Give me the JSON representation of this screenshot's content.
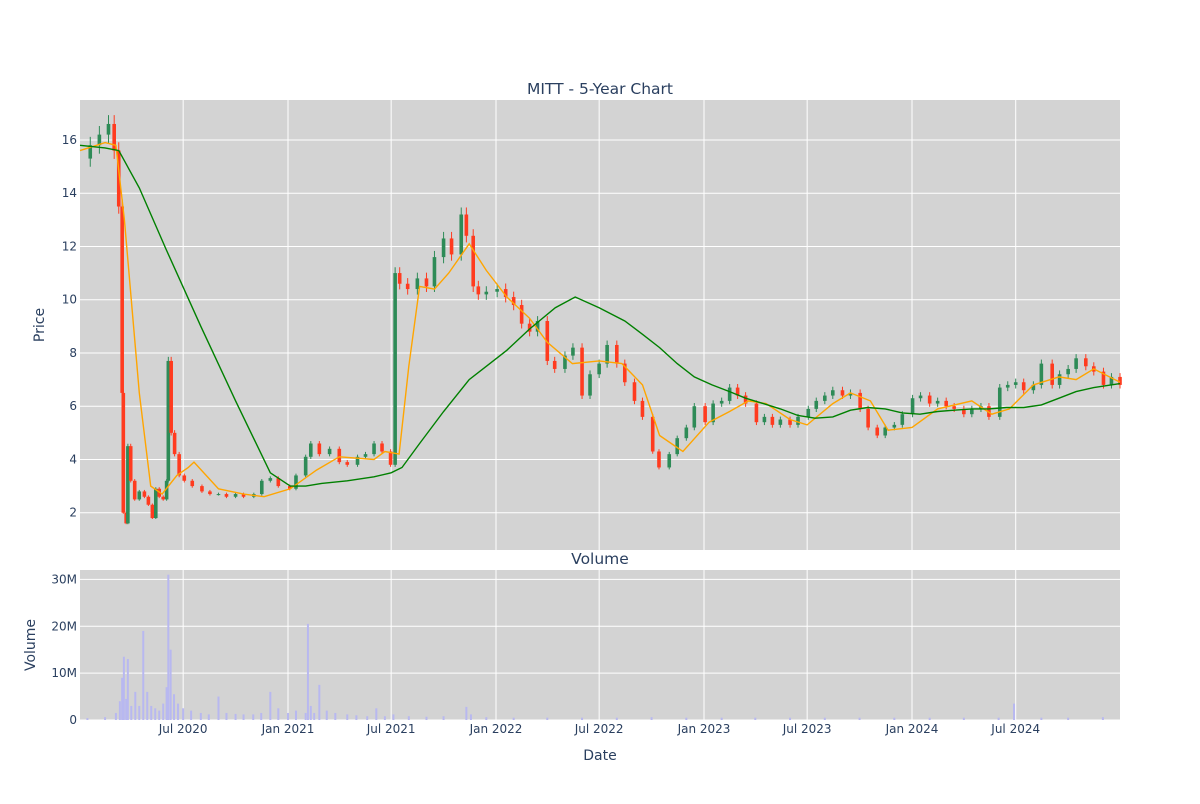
{
  "chart_data": [
    {
      "type": "candlestick",
      "title": "MITT - 5-Year Chart",
      "xlabel": "",
      "ylabel": "Price",
      "ylim": [
        0.6,
        17.5
      ],
      "xlim": [
        "2020-01-02",
        "2024-12-31"
      ],
      "y_ticks": [
        2,
        4,
        6,
        8,
        10,
        12,
        14,
        16
      ],
      "grid": true,
      "legend": "none",
      "colors": {
        "plot_background": "#d3d3d3",
        "increasing": "#2e8b57",
        "decreasing": "#ff3b1f",
        "ma_short": "#ffa500",
        "ma_long": "#008000"
      },
      "series": [
        {
          "kind": "close",
          "x": [
            "2020-01-02",
            "2020-01-20",
            "2020-02-05",
            "2020-02-21",
            "2020-03-02",
            "2020-03-10",
            "2020-03-16",
            "2020-03-18",
            "2020-03-23",
            "2020-03-26",
            "2020-03-31",
            "2020-04-07",
            "2020-04-15",
            "2020-04-24",
            "2020-05-01",
            "2020-05-08",
            "2020-05-14",
            "2020-05-20",
            "2020-05-27",
            "2020-06-02",
            "2020-06-05",
            "2020-06-10",
            "2020-06-16",
            "2020-06-24",
            "2020-07-03",
            "2020-07-17",
            "2020-08-03",
            "2020-08-17",
            "2020-09-01",
            "2020-09-15",
            "2020-10-01",
            "2020-10-15",
            "2020-11-02",
            "2020-11-16",
            "2020-12-01",
            "2020-12-15",
            "2021-01-04",
            "2021-01-15",
            "2021-02-01",
            "2021-02-10",
            "2021-02-25",
            "2021-03-15",
            "2021-04-01",
            "2021-04-15",
            "2021-05-03",
            "2021-05-17",
            "2021-06-01",
            "2021-06-15",
            "2021-06-30",
            "2021-07-08",
            "2021-07-16",
            "2021-07-30",
            "2021-08-16",
            "2021-09-01",
            "2021-09-15",
            "2021-10-01",
            "2021-10-15",
            "2021-11-01",
            "2021-11-10",
            "2021-11-22",
            "2021-12-01",
            "2021-12-15",
            "2022-01-03",
            "2022-01-18",
            "2022-02-01",
            "2022-02-15",
            "2022-03-01",
            "2022-03-15",
            "2022-04-01",
            "2022-04-14",
            "2022-05-02",
            "2022-05-16",
            "2022-06-01",
            "2022-06-15",
            "2022-07-01",
            "2022-07-15",
            "2022-08-01",
            "2022-08-15",
            "2022-09-01",
            "2022-09-15",
            "2022-10-03",
            "2022-10-14",
            "2022-11-01",
            "2022-11-15",
            "2022-12-01",
            "2022-12-15",
            "2023-01-03",
            "2023-01-17",
            "2023-02-01",
            "2023-02-15",
            "2023-03-01",
            "2023-03-15",
            "2023-04-03",
            "2023-04-17",
            "2023-05-01",
            "2023-05-15",
            "2023-06-01",
            "2023-06-15",
            "2023-07-03",
            "2023-07-17",
            "2023-08-01",
            "2023-08-15",
            "2023-09-01",
            "2023-09-15",
            "2023-10-02",
            "2023-10-16",
            "2023-11-01",
            "2023-11-15",
            "2023-12-01",
            "2023-12-15",
            "2024-01-02",
            "2024-01-16",
            "2024-02-01",
            "2024-02-15",
            "2024-03-01",
            "2024-03-15",
            "2024-04-01",
            "2024-04-15",
            "2024-05-01",
            "2024-05-15",
            "2024-06-03",
            "2024-06-17",
            "2024-07-01",
            "2024-07-15",
            "2024-08-01",
            "2024-08-15",
            "2024-09-03",
            "2024-09-16",
            "2024-10-01",
            "2024-10-15",
            "2024-11-01",
            "2024-11-15",
            "2024-12-02",
            "2024-12-16",
            "2024-12-31"
          ],
          "values": [
            15.3,
            15.8,
            16.2,
            16.6,
            15.6,
            13.5,
            6.5,
            2.0,
            1.6,
            4.5,
            3.2,
            2.5,
            2.8,
            2.6,
            2.3,
            1.8,
            2.9,
            2.6,
            2.5,
            3.2,
            7.7,
            5.0,
            4.2,
            3.4,
            3.2,
            3.0,
            2.8,
            2.7,
            2.7,
            2.6,
            2.7,
            2.6,
            2.7,
            3.2,
            3.3,
            3.0,
            2.9,
            3.4,
            4.1,
            4.6,
            4.2,
            4.4,
            3.9,
            3.8,
            4.1,
            4.2,
            4.6,
            4.3,
            3.8,
            11.0,
            10.6,
            10.4,
            10.8,
            10.5,
            11.6,
            12.3,
            11.7,
            13.2,
            12.4,
            10.5,
            10.2,
            10.3,
            10.4,
            10.1,
            9.8,
            9.1,
            8.8,
            9.2,
            7.7,
            7.4,
            7.9,
            8.2,
            6.4,
            7.2,
            7.6,
            8.3,
            7.6,
            6.9,
            6.2,
            5.6,
            4.3,
            3.7,
            4.2,
            4.8,
            5.2,
            6.0,
            5.4,
            6.1,
            6.2,
            6.7,
            6.4,
            6.1,
            5.4,
            5.6,
            5.3,
            5.5,
            5.3,
            5.6,
            5.9,
            6.2,
            6.4,
            6.6,
            6.4,
            6.5,
            5.9,
            5.2,
            4.9,
            5.2,
            5.3,
            5.7,
            6.3,
            6.4,
            6.1,
            6.2,
            6.0,
            5.9,
            5.7,
            5.9,
            6.0,
            5.6,
            6.7,
            6.8,
            6.9,
            6.6,
            6.8,
            7.6,
            6.8,
            7.2,
            7.4,
            7.8,
            7.5,
            7.3,
            6.8,
            7.1,
            6.8
          ]
        },
        {
          "kind": "ma_short",
          "x": [
            "2020-01-02",
            "2020-02-15",
            "2020-03-05",
            "2020-03-20",
            "2020-04-15",
            "2020-05-05",
            "2020-05-25",
            "2020-06-20",
            "2020-07-10",
            "2020-07-20",
            "2020-09-01",
            "2020-10-15",
            "2020-11-20",
            "2021-01-05",
            "2021-02-20",
            "2021-04-01",
            "2021-06-01",
            "2021-06-20",
            "2021-07-15",
            "2021-08-01",
            "2021-08-20",
            "2021-09-15",
            "2021-10-10",
            "2021-11-15",
            "2021-12-15",
            "2022-01-20",
            "2022-03-01",
            "2022-04-01",
            "2022-05-15",
            "2022-07-01",
            "2022-08-10",
            "2022-09-15",
            "2022-10-15",
            "2022-11-25",
            "2023-01-10",
            "2023-02-15",
            "2023-03-20",
            "2023-04-20",
            "2023-06-01",
            "2023-07-01",
            "2023-08-15",
            "2023-09-15",
            "2023-10-20",
            "2023-11-20",
            "2024-01-01",
            "2024-02-15",
            "2024-04-15",
            "2024-05-20",
            "2024-06-20",
            "2024-08-01",
            "2024-09-15",
            "2024-10-15",
            "2024-11-15",
            "2024-12-31"
          ],
          "values": [
            15.6,
            15.9,
            15.8,
            13.0,
            6.5,
            3.0,
            2.7,
            3.4,
            3.7,
            3.9,
            2.9,
            2.7,
            2.6,
            2.9,
            3.6,
            4.1,
            4.0,
            4.3,
            4.2,
            7.5,
            10.5,
            10.4,
            11.0,
            12.1,
            11.1,
            10.1,
            9.3,
            8.4,
            7.6,
            7.7,
            7.6,
            6.8,
            4.9,
            4.3,
            5.4,
            5.8,
            6.2,
            6.1,
            5.5,
            5.3,
            6.1,
            6.5,
            6.2,
            5.1,
            5.2,
            5.9,
            6.2,
            5.7,
            5.9,
            6.8,
            7.1,
            7.0,
            7.4,
            6.9
          ]
        },
        {
          "kind": "ma_long",
          "x": [
            "2020-01-02",
            "2020-02-15",
            "2020-03-10",
            "2020-04-15",
            "2020-06-01",
            "2020-08-01",
            "2020-10-01",
            "2020-12-01",
            "2021-01-05",
            "2021-02-01",
            "2021-03-01",
            "2021-04-15",
            "2021-06-01",
            "2021-07-01",
            "2021-07-20",
            "2021-08-20",
            "2021-10-01",
            "2021-11-15",
            "2021-12-15",
            "2022-01-20",
            "2022-03-01",
            "2022-04-15",
            "2022-05-20",
            "2022-07-01",
            "2022-08-15",
            "2022-09-15",
            "2022-10-15",
            "2022-11-15",
            "2022-12-15",
            "2023-01-15",
            "2023-02-15",
            "2023-03-15",
            "2023-04-15",
            "2023-05-15",
            "2023-06-15",
            "2023-07-15",
            "2023-08-15",
            "2023-09-15",
            "2023-10-15",
            "2023-11-15",
            "2023-12-15",
            "2024-01-15",
            "2024-02-15",
            "2024-03-15",
            "2024-04-15",
            "2024-05-15",
            "2024-06-15",
            "2024-07-15",
            "2024-08-15",
            "2024-09-15",
            "2024-10-15",
            "2024-11-15",
            "2024-12-31"
          ],
          "values": [
            15.8,
            15.7,
            15.6,
            14.2,
            11.9,
            9.0,
            6.2,
            3.5,
            3.0,
            3.0,
            3.1,
            3.2,
            3.35,
            3.5,
            3.7,
            4.6,
            5.8,
            7.0,
            7.5,
            8.1,
            8.9,
            9.7,
            10.1,
            9.7,
            9.2,
            8.7,
            8.2,
            7.6,
            7.1,
            6.8,
            6.55,
            6.3,
            6.1,
            5.9,
            5.65,
            5.55,
            5.6,
            5.85,
            5.95,
            5.9,
            5.75,
            5.7,
            5.8,
            5.85,
            5.9,
            5.9,
            5.95,
            5.95,
            6.05,
            6.3,
            6.55,
            6.7,
            6.85
          ]
        }
      ]
    },
    {
      "type": "bar",
      "title": "Volume",
      "xlabel": "Date",
      "ylabel": "Volume",
      "ylim": [
        0,
        32000000
      ],
      "y_ticks": [
        0,
        10000000,
        20000000,
        30000000
      ],
      "y_tick_labels": [
        "0",
        "10M",
        "20M",
        "30M"
      ],
      "x_ticks": [
        "2020-07-01",
        "2021-01-01",
        "2021-07-01",
        "2022-01-01",
        "2022-07-01",
        "2023-01-01",
        "2023-07-01",
        "2024-01-01",
        "2024-07-01"
      ],
      "x_tick_labels": [
        "Jul 2020",
        "Jan 2021",
        "Jul 2021",
        "Jan 2022",
        "Jul 2022",
        "Jan 2023",
        "Jul 2023",
        "Jan 2024",
        "Jul 2024"
      ],
      "grid": true,
      "colors": {
        "bar": "#b8b8f0",
        "plot_background": "#d3d3d3"
      },
      "x": [
        "2020-01-15",
        "2020-02-15",
        "2020-03-05",
        "2020-03-12",
        "2020-03-16",
        "2020-03-19",
        "2020-03-23",
        "2020-03-26",
        "2020-04-01",
        "2020-04-08",
        "2020-04-15",
        "2020-04-22",
        "2020-04-29",
        "2020-05-06",
        "2020-05-13",
        "2020-05-20",
        "2020-05-27",
        "2020-06-02",
        "2020-06-05",
        "2020-06-09",
        "2020-06-15",
        "2020-06-22",
        "2020-07-01",
        "2020-07-15",
        "2020-08-01",
        "2020-08-15",
        "2020-09-01",
        "2020-09-15",
        "2020-10-01",
        "2020-10-15",
        "2020-11-01",
        "2020-11-15",
        "2020-12-01",
        "2020-12-15",
        "2021-01-01",
        "2021-01-15",
        "2021-02-01",
        "2021-02-05",
        "2021-02-10",
        "2021-02-16",
        "2021-02-25",
        "2021-03-10",
        "2021-03-25",
        "2021-04-15",
        "2021-05-01",
        "2021-05-20",
        "2021-06-05",
        "2021-06-20",
        "2021-07-05",
        "2021-08-01",
        "2021-09-01",
        "2021-10-01",
        "2021-11-10",
        "2021-11-18",
        "2021-12-15",
        "2022-02-01",
        "2022-04-01",
        "2022-06-01",
        "2022-08-01",
        "2022-10-01",
        "2022-12-01",
        "2023-02-01",
        "2023-04-01",
        "2023-06-01",
        "2023-08-01",
        "2023-10-01",
        "2023-12-01",
        "2024-02-01",
        "2024-04-01",
        "2024-06-01",
        "2024-06-28",
        "2024-08-15",
        "2024-10-01",
        "2024-12-01"
      ],
      "values": [
        400000,
        600000,
        1500000,
        4000000,
        9000000,
        13500000,
        4500000,
        13000000,
        3000000,
        6000000,
        3000000,
        19000000,
        6000000,
        3000000,
        2500000,
        2000000,
        3500000,
        7000000,
        31000000,
        15000000,
        5500000,
        3500000,
        2500000,
        2000000,
        1500000,
        1200000,
        5000000,
        1500000,
        1300000,
        1200000,
        1200000,
        1500000,
        6000000,
        2500000,
        1500000,
        2000000,
        1500000,
        20500000,
        3000000,
        1500000,
        7500000,
        2000000,
        1500000,
        1200000,
        1000000,
        800000,
        2500000,
        800000,
        1200000,
        800000,
        700000,
        800000,
        2800000,
        1200000,
        600000,
        500000,
        500000,
        500000,
        500000,
        600000,
        500000,
        500000,
        500000,
        500000,
        500000,
        500000,
        500000,
        500000,
        500000,
        500000,
        3500000,
        500000,
        500000,
        600000
      ]
    }
  ]
}
